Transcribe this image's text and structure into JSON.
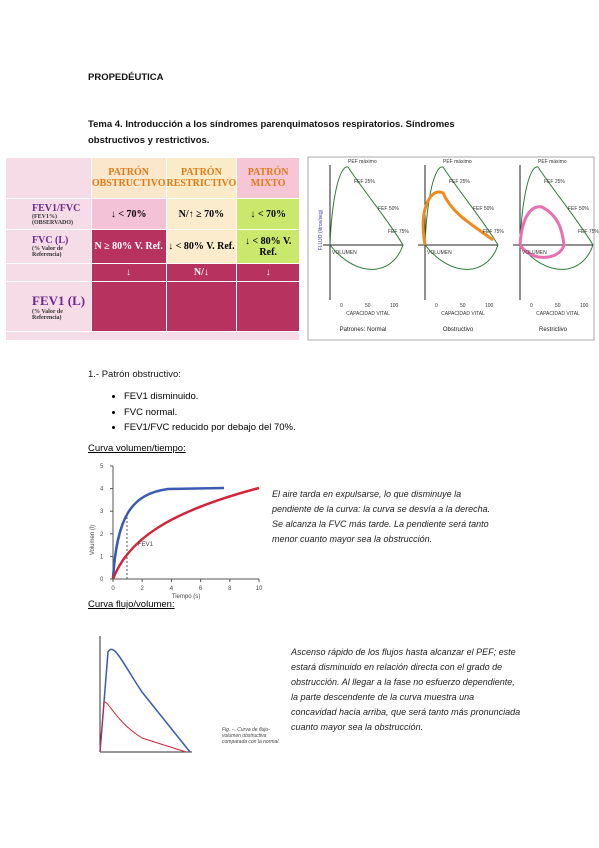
{
  "header": {
    "title": "PROPEDÉUTICA"
  },
  "topic": {
    "title": "Tema 4. Introducción a los síndromes parenquimatosos respiratorios. Síndromes obstructivos y restrictivos."
  },
  "pattern_table": {
    "columns": [
      "PATRÓN OBSTRUCTIVO",
      "PATRÓN RESTRICTIVO",
      "PATRÓN MIXTO"
    ],
    "rows": [
      {
        "label": "FEV1/FVC",
        "sublabel": "(FEV1%) (OBSERVADO)",
        "cells": [
          "↓  < 70%",
          "N/↑  ≥ 70%",
          "↓  < 70%"
        ]
      },
      {
        "label": "FVC (L)",
        "sublabel": "(% Valor de Referencia)",
        "cells": [
          "N  ≥ 80% V. Ref.",
          "↓  < 80% V. Ref.",
          "↓  < 80% V. Ref."
        ]
      },
      {
        "cells": [
          "↓",
          "N/↓",
          "↓"
        ]
      },
      {
        "label": "FEV1 (L)",
        "sublabel": "(% Valor de Referencia)"
      }
    ]
  },
  "flow_volume_panels": {
    "y_label": "FLUJO (litros/seg)",
    "peak": "PEF máximo",
    "fef25": "FEF 25%",
    "fef50": "FEF 50%",
    "fef75": "FEF 75%",
    "volume": "VOLUMEN",
    "x_label": "CAPACIDAD VITAL",
    "x_ticks": [
      "0",
      "50",
      "100"
    ],
    "panels": [
      "Patrones: Normal",
      "Obstructivo",
      "Restrictivo"
    ]
  },
  "section": {
    "title": "1.- Patrón obstructivo:",
    "bullets": [
      "FEV1 disminuido.",
      "FVC normal.",
      "FEV1/FVC reducido por debajo del 70%."
    ]
  },
  "vt_figure": {
    "heading": "Curva volumen/tiempo:",
    "y_label": "Volumen (l)",
    "x_label": "Tiempo (s)",
    "marker": "FEV1",
    "yticks": [
      0,
      1,
      2,
      3,
      4,
      5
    ],
    "xticks": [
      0,
      2,
      4,
      6,
      8,
      10
    ],
    "text": "El aire tarda en expulsarse, lo que disminuye la pendiente de la curva: la curva se desvía a la derecha. Se alcanza la FVC más tarde. La pendiente será tanto menor cuanto mayor sea la obstrucción."
  },
  "fv_figure": {
    "heading": "Curva flujo/volumen:",
    "caption": "Fig. –. Curva de flujo-volumen obstructiva comparada con la normal.",
    "text": "Ascenso rápido de los flujos hasta alcanzar el PEF; este estará disminuido en relación directa con el grado de obstrucción. Al llegar a la fase no esfuerzo dependiente, la parte descendente de la curva muestra una concavidad hacia arriba, que será tanto más pronunciada cuanto mayor sea la obstrucción."
  }
}
